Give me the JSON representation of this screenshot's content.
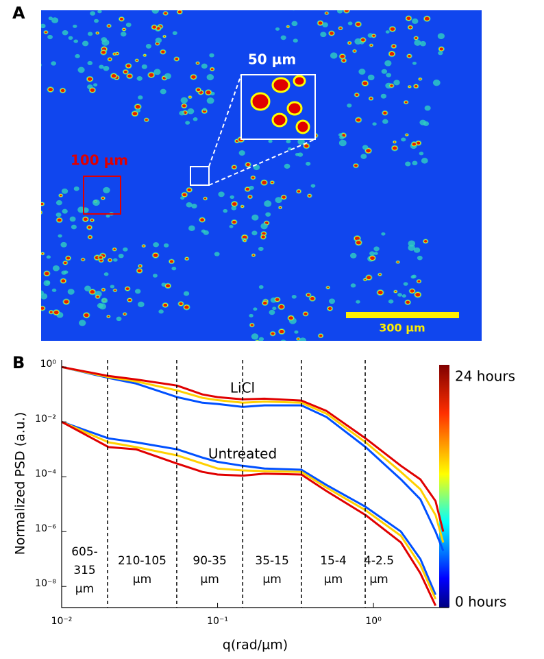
{
  "panel_a": {
    "label": "A",
    "inset_scale": "50 µm",
    "box_scale": "100 µm",
    "scale_bar": "300 µm"
  },
  "chart_data": {
    "type": "line",
    "panel_label": "B",
    "xlabel": "q(rad/µm)",
    "ylabel": "Normalized PSD (a.u.)",
    "log_x": true,
    "log_y": true,
    "xlim": [
      0.01,
      3.04
    ],
    "ylim": [
      1.7e-09,
      1.8
    ],
    "xticks": [
      {
        "value": 0.01,
        "label": "10⁻²"
      },
      {
        "value": 0.1,
        "label": "10⁻¹"
      },
      {
        "value": 1,
        "label": "10⁰"
      }
    ],
    "yticks": [
      {
        "value": 1,
        "label": "10⁰"
      },
      {
        "value": 0.01,
        "label": "10⁻²"
      },
      {
        "value": 0.0001,
        "label": "10⁻⁴"
      },
      {
        "value": 1e-06,
        "label": "10⁻⁶"
      },
      {
        "value": 1e-08,
        "label": "10⁻⁸"
      }
    ],
    "boundaries": [
      0.0197,
      0.0547,
      0.145,
      0.345,
      0.885
    ],
    "region_labels": [
      [
        "605-",
        "315",
        "µm"
      ],
      [
        "210-105",
        "µm"
      ],
      [
        "90-35",
        "µm"
      ],
      [
        "35-15",
        "µm"
      ],
      [
        "15-4",
        "µm"
      ],
      [
        "4-2.5",
        "µm"
      ]
    ],
    "annotations": [
      "LiCl",
      "Untreated"
    ],
    "colorbar_labels": [
      "24 hours",
      "0 hours"
    ],
    "x": [
      0.01,
      0.02,
      0.03,
      0.055,
      0.08,
      0.1,
      0.145,
      0.2,
      0.345,
      0.5,
      0.89,
      1.5,
      2.0,
      2.5,
      2.8
    ],
    "series": [
      {
        "color": "#0050ff",
        "values": [
          1,
          0.4,
          0.25,
          0.08,
          0.05,
          0.045,
          0.035,
          0.04,
          0.04,
          0.015,
          0.0012,
          8e-05,
          1.5e-05,
          1e-06,
          2e-07
        ]
      },
      {
        "color": "#ffd000",
        "values": [
          1,
          0.43,
          0.3,
          0.14,
          0.075,
          0.062,
          0.05,
          0.055,
          0.05,
          0.02,
          0.0018,
          0.00015,
          3.5e-05,
          4e-06,
          4e-07
        ]
      },
      {
        "color": "#e00000",
        "values": [
          1,
          0.47,
          0.35,
          0.21,
          0.1,
          0.08,
          0.066,
          0.07,
          0.06,
          0.025,
          0.0025,
          0.00025,
          8e-05,
          1.3e-05,
          1e-06
        ]
      },
      {
        "color": "#0050ff",
        "values": [
          0.01,
          0.0025,
          0.0018,
          0.001,
          0.0005,
          0.00035,
          0.00025,
          0.0002,
          0.00018,
          5e-05,
          8e-06,
          1e-06,
          1e-07,
          5e-09,
          null
        ]
      },
      {
        "color": "#ffd000",
        "values": [
          0.01,
          0.0018,
          0.0012,
          0.0006,
          0.0003,
          0.0002,
          0.00017,
          0.00016,
          0.00015,
          4e-05,
          6e-06,
          7e-07,
          6e-08,
          3.5e-09,
          null
        ]
      },
      {
        "color": "#e00000",
        "values": [
          0.01,
          0.0012,
          0.001,
          0.0003,
          0.00015,
          0.00012,
          0.00011,
          0.00013,
          0.00012,
          3e-05,
          4e-06,
          4e-07,
          3e-08,
          2e-09,
          null
        ]
      }
    ]
  }
}
